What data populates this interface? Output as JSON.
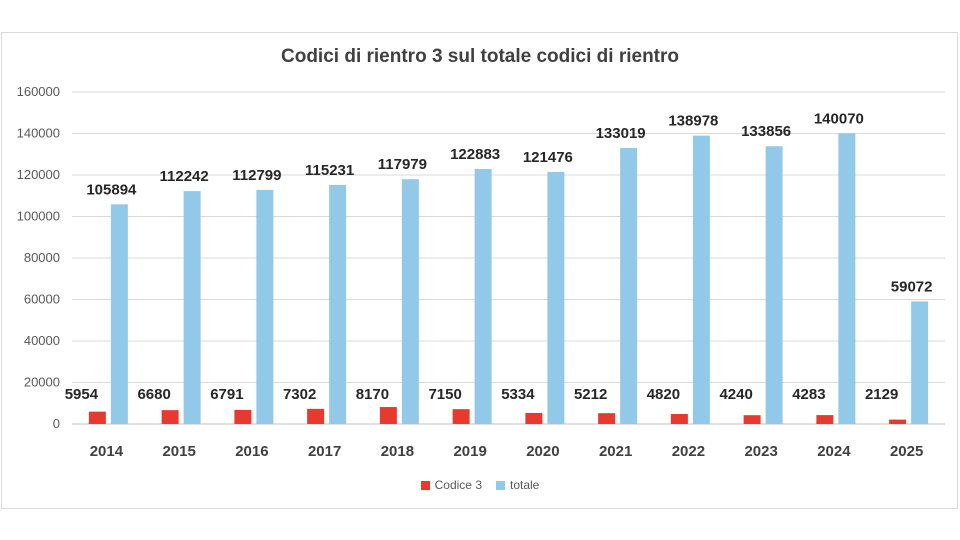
{
  "chart_data": {
    "type": "bar",
    "title": "Codici di rientro 3 sul totale codici di rientro",
    "categories": [
      "2014",
      "2015",
      "2016",
      "2017",
      "2018",
      "2019",
      "2020",
      "2021",
      "2022",
      "2023",
      "2024",
      "2025"
    ],
    "series": [
      {
        "name": "Codice 3",
        "color": "#e8392f",
        "values": [
          5954,
          6680,
          6791,
          7302,
          8170,
          7150,
          5334,
          5212,
          4820,
          4240,
          4283,
          2129
        ]
      },
      {
        "name": "totale",
        "color": "#93c9e8",
        "values": [
          105894,
          112242,
          112799,
          115231,
          117979,
          122883,
          121476,
          133019,
          138978,
          133856,
          140070,
          59072
        ]
      }
    ],
    "ylim": [
      0,
      160000
    ],
    "yticks": [
      0,
      20000,
      40000,
      60000,
      80000,
      100000,
      120000,
      140000,
      160000
    ],
    "grid": true,
    "legend_position": "bottom",
    "xlabel": "",
    "ylabel": ""
  }
}
